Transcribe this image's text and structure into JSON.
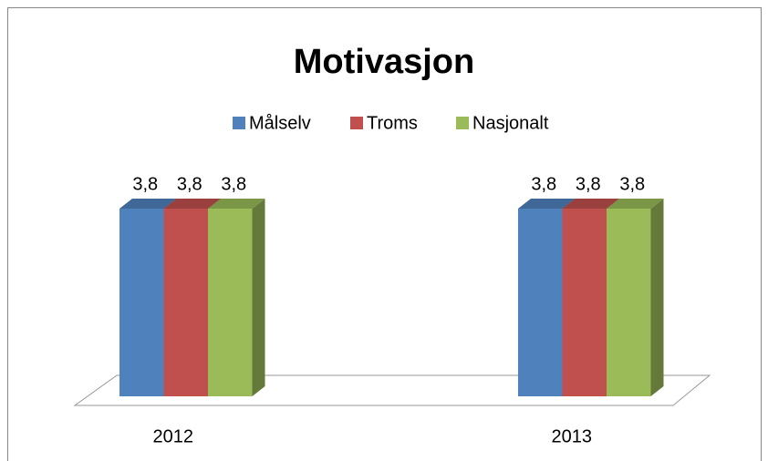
{
  "chart_data": {
    "type": "bar3d",
    "title": "Motivasjon",
    "categories": [
      "2012",
      "2013"
    ],
    "series": [
      {
        "name": "Målselv",
        "color": "#4f81bd",
        "values": [
          3.8,
          3.8
        ],
        "value_labels": [
          "3,8",
          "3,8"
        ]
      },
      {
        "name": "Troms",
        "color": "#c0504d",
        "values": [
          3.8,
          3.8
        ],
        "value_labels": [
          "3,8",
          "3,8"
        ]
      },
      {
        "name": "Nasjonalt",
        "color": "#9bbb59",
        "values": [
          3.8,
          3.8
        ],
        "value_labels": [
          "3,8",
          "3,8"
        ]
      }
    ],
    "legend": "top"
  }
}
